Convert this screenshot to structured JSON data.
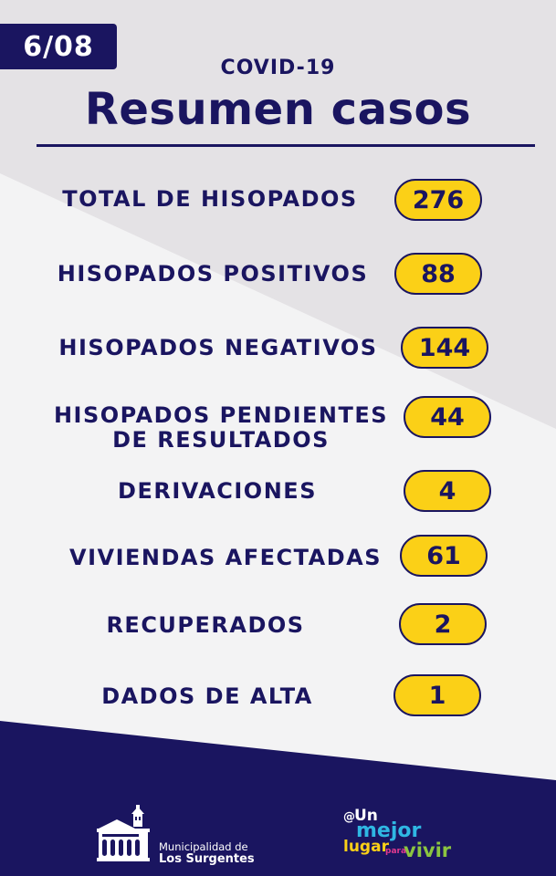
{
  "header": {
    "date": "6/08",
    "subtitle": "COVID-19",
    "title": "Resumen casos"
  },
  "stats": [
    {
      "label": "TOTAL DE HISOPADOS",
      "value": "276"
    },
    {
      "label": "HISOPADOS POSITIVOS",
      "value": "88"
    },
    {
      "label": "HISOPADOS NEGATIVOS",
      "value": "144"
    },
    {
      "label_line1": "HISOPADOS PENDIENTES",
      "label_line2": "DE RESULTADOS",
      "value": "44"
    },
    {
      "label": "DERIVACIONES",
      "value": "4"
    },
    {
      "label": "VIVIENDAS AFECTADAS",
      "value": "61"
    },
    {
      "label": "RECUPERADOS",
      "value": "2"
    },
    {
      "label": "DADOS DE ALTA",
      "value": "1"
    }
  ],
  "footer": {
    "municipality_line1": "Municipalidad de",
    "municipality_line2": "Los Surgentes",
    "slogan": {
      "at": "@",
      "un": "Un",
      "mejor": "mejor",
      "lugar": "lugar",
      "para": "para",
      "vivir": "vivir"
    }
  },
  "colors": {
    "navy": "#1a1560",
    "yellow": "#fbd017",
    "light_gray": "#e4e2e5",
    "white": "#f3f3f4"
  }
}
